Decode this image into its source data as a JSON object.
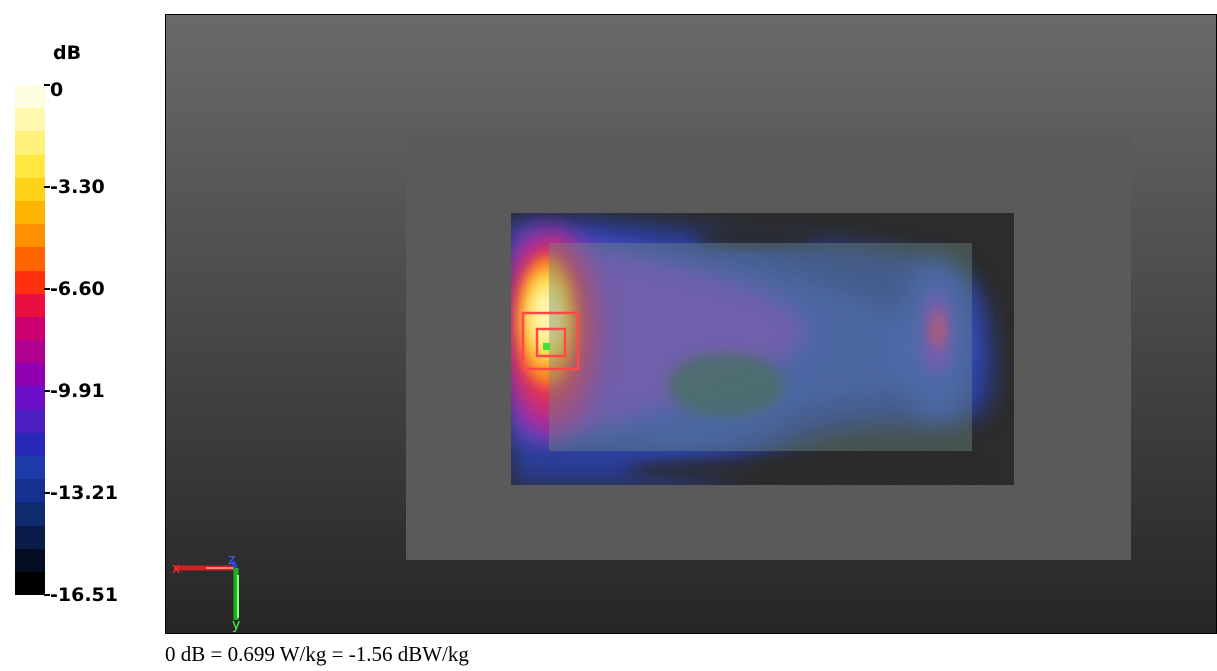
{
  "chart_data": {
    "type": "heatmap",
    "colorbar": {
      "unit": "dB",
      "tick_labels": [
        "0",
        "-3.30",
        "-6.60",
        "-9.91",
        "-13.21",
        "-16.51"
      ],
      "tick_values": [
        0,
        -3.3,
        -6.6,
        -9.91,
        -13.21,
        -16.51
      ],
      "range": [
        -16.51,
        0
      ],
      "colors": [
        "#fffde0",
        "#fff8b0",
        "#fff27a",
        "#ffe640",
        "#ffd21a",
        "#ffb400",
        "#ff9000",
        "#ff6400",
        "#ff3010",
        "#e81040",
        "#cc0070",
        "#b00090",
        "#9000b0",
        "#6c10c8",
        "#4c1ec0",
        "#2828b8",
        "#1c3aa8",
        "#163090",
        "#102a70",
        "#0a1c48",
        "#040e20",
        "#000000"
      ]
    },
    "peak": {
      "value_db": 0
    },
    "axes_triad": {
      "x_label": "x",
      "y_label": "y",
      "z_label": "z"
    },
    "footer": "0 dB = 0.699 W/kg = -1.56 dBW/kg"
  },
  "colors": {
    "background_top": "#6a6a6a",
    "background_bottom": "#262626",
    "outer_panel": "#5a5a5a",
    "scan_area": "#2c2c2c",
    "inner_panel": "#6c8a7e",
    "zoom_marker": "#ff4848",
    "peak_point": "#40e040"
  }
}
